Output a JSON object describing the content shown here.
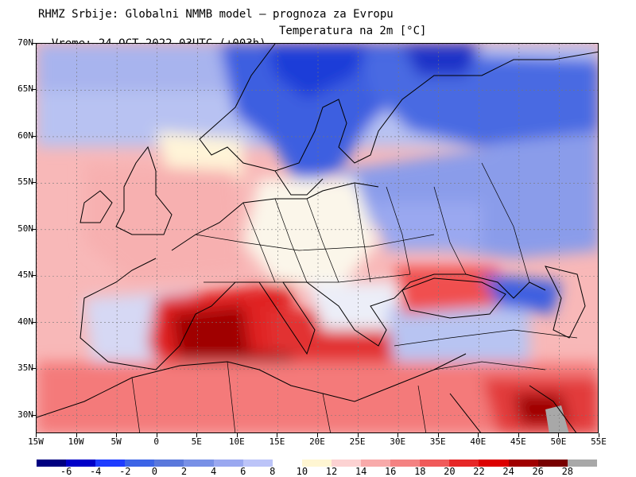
{
  "header": {
    "line1": "RHMZ Srbije: Globalni NMMB model — prognoza za Evropu",
    "line2_time": "Vreme: 24 OCT 2022 03UTC (+003h)",
    "line2_param": "Temperatura na 2m [°C]"
  },
  "map": {
    "latitudes": [
      "70N",
      "65N",
      "60N",
      "55N",
      "50N",
      "45N",
      "40N",
      "35N",
      "30N"
    ],
    "longitudes": [
      "15W",
      "10W",
      "5W",
      "0",
      "5E",
      "10E",
      "15E",
      "20E",
      "25E",
      "30E",
      "35E",
      "40E",
      "45E",
      "50E",
      "55E"
    ],
    "lon_range": [
      -15,
      55
    ],
    "lat_range": [
      28,
      70
    ],
    "regions_icons": [
      "temperature-field",
      "coastlines",
      "country-borders",
      "graticule"
    ]
  },
  "colorbar": {
    "labels": [
      "-6",
      "-4",
      "-2",
      "0",
      "2",
      "4",
      "6",
      "8",
      "10",
      "12",
      "14",
      "16",
      "18",
      "20",
      "22",
      "24",
      "26",
      "28"
    ],
    "colors": [
      "#000080",
      "#0000c8",
      "#1e3cff",
      "#3c64e6",
      "#5a78dc",
      "#7890e6",
      "#9aa8f0",
      "#bcc4f8",
      "#ffffff",
      "#fff6d2",
      "#fcd2d2",
      "#f8aaaa",
      "#f48282",
      "#f05a5a",
      "#e62828",
      "#dc0000",
      "#a00000",
      "#780000",
      "#a8a8a8"
    ]
  }
}
